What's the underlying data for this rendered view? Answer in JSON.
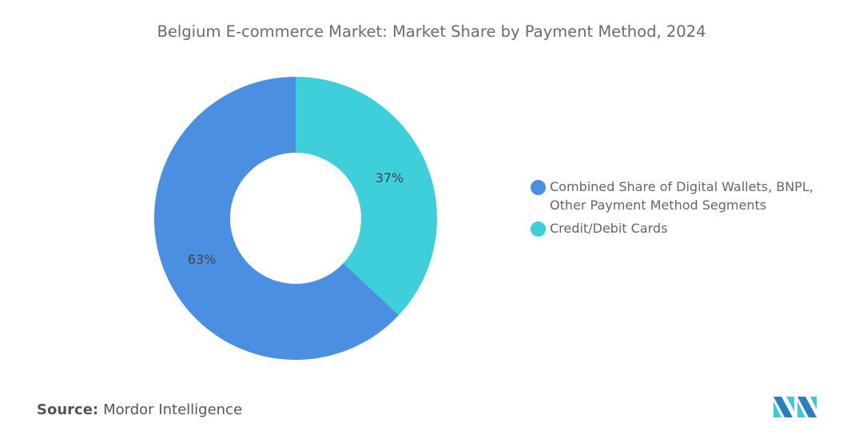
{
  "chart_data": {
    "type": "pie",
    "subtype": "donut",
    "title": "Belgium E-commerce Market: Market Share by Payment Method, 2024",
    "categories": [
      "Combined Share of Digital Wallets, BNPL, Other Payment Method Segments",
      "Credit/Debit Cards"
    ],
    "values": [
      63,
      37
    ],
    "data_labels": [
      "63%",
      "37%"
    ],
    "colors": [
      "#4a8fe2",
      "#3ecfdb"
    ],
    "legend_placement": "right"
  },
  "source": {
    "label": "Source:",
    "value": "Mordor Intelligence"
  },
  "logo": {
    "name": "mordor-intelligence-logo",
    "text": "Mordor Intelligence"
  }
}
